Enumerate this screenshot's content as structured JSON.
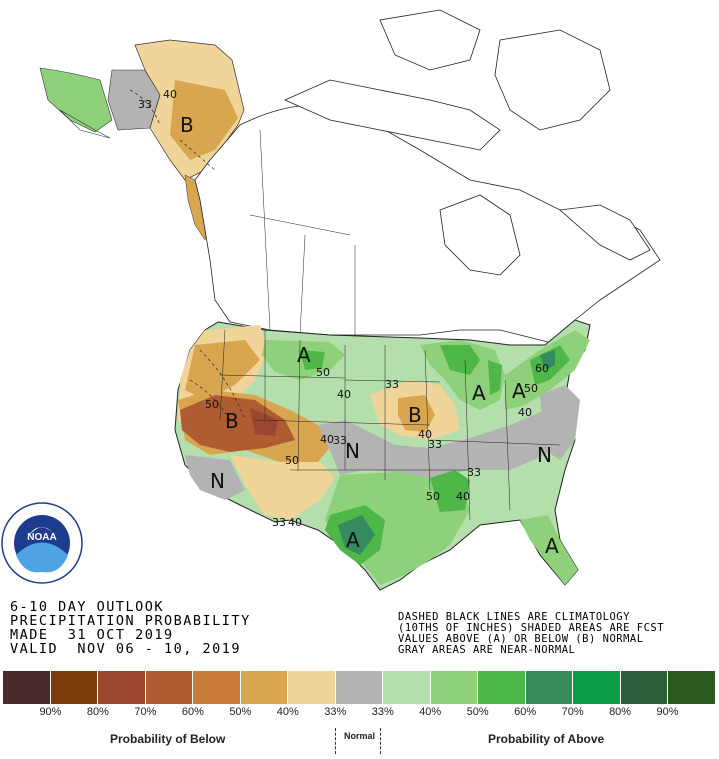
{
  "logo": {
    "name": "NOAA",
    "ring_text": "NATIONAL OCEANIC AND ATMOSPHERIC ADMINISTRATION · U.S. DEPARTMENT OF COMMERCE"
  },
  "title_lines": [
    "6-10 DAY OUTLOOK",
    "PRECIPITATION PROBABILITY",
    "MADE  31 OCT 2019",
    "VALID  NOV 06 - 10, 2019"
  ],
  "note_lines": [
    "DASHED BLACK LINES ARE CLIMATOLOGY",
    "(10THS OF INCHES) SHADED AREAS ARE FCST",
    "VALUES ABOVE (A) OR BELOW (B) NORMAL",
    "GRAY AREAS ARE NEAR-NORMAL"
  ],
  "map_labels": {
    "alaska_b": "B",
    "alaska_40": "40",
    "alaska_33": "33",
    "west_b": "B",
    "west_50": "50",
    "west_50b": "50",
    "west_n": "N",
    "plains_a": "A",
    "plains_50": "50",
    "plains_40": "40",
    "plains_33": "33",
    "plains_40b": "40",
    "plains_33b": "33",
    "plains_n": "N",
    "iowa_b": "B",
    "iowa_40": "40",
    "iowa_33": "33",
    "lakes_a": "A",
    "ne_a": "A",
    "ne_50": "50",
    "ne_40": "40",
    "ne_60": "60",
    "east_n": "N",
    "east_33": "33",
    "south_50": "50",
    "south_40": "40",
    "texas_a": "A",
    "texas_33": "33",
    "texas_40": "40",
    "fl_a": "A"
  },
  "legend": {
    "colors": [
      "#4a2b2b",
      "#7a3a0a",
      "#9c4530",
      "#b05c33",
      "#c87a3a",
      "#d9a650",
      "#f0d49a",
      "#b3b3b3",
      "#b4dfac",
      "#8fd07b",
      "#4db848",
      "#358a5e",
      "#0d9b45",
      "#2c5e3a",
      "#2a5a1e"
    ],
    "ticks": [
      "90%",
      "80%",
      "70%",
      "60%",
      "50%",
      "40%",
      "33%",
      "33%",
      "40%",
      "50%",
      "60%",
      "70%",
      "80%",
      "90%"
    ],
    "below_caption": "Probability of Below",
    "normal_caption": "Normal",
    "above_caption": "Probability of Above"
  }
}
